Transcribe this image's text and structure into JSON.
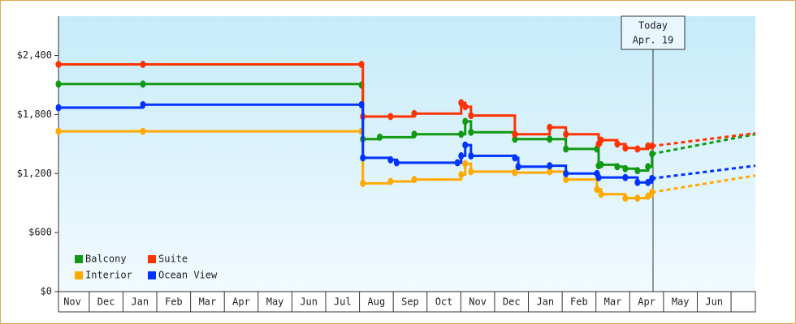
{
  "chart_data": {
    "type": "step-line",
    "xlim": [
      0.09,
      20.72
    ],
    "xticks": [
      {
        "value": 0.5,
        "label": "Nov"
      },
      {
        "value": 1.5,
        "label": "Dec"
      },
      {
        "value": 2.5,
        "label": "Jan"
      },
      {
        "value": 3.5,
        "label": "Feb"
      },
      {
        "value": 4.5,
        "label": "Mar"
      },
      {
        "value": 5.5,
        "label": "Apr"
      },
      {
        "value": 6.5,
        "label": "May"
      },
      {
        "value": 7.5,
        "label": "Jun"
      },
      {
        "value": 8.5,
        "label": "Jul"
      },
      {
        "value": 9.5,
        "label": "Aug"
      },
      {
        "value": 10.5,
        "label": "Sep"
      },
      {
        "value": 11.5,
        "label": "Oct"
      },
      {
        "value": 12.5,
        "label": "Nov"
      },
      {
        "value": 13.5,
        "label": "Dec"
      },
      {
        "value": 14.5,
        "label": "Jan"
      },
      {
        "value": 15.5,
        "label": "Feb"
      },
      {
        "value": 16.5,
        "label": "Mar"
      },
      {
        "value": 17.5,
        "label": "Apr"
      },
      {
        "value": 18.5,
        "label": "May"
      },
      {
        "value": 19.5,
        "label": "Jun"
      }
    ],
    "ylim": [
      0,
      2800
    ],
    "yticks": [
      {
        "value": 0,
        "label": "$0"
      },
      {
        "value": 600,
        "label": "$600"
      },
      {
        "value": 1200,
        "label": "$1,200"
      },
      {
        "value": 1800,
        "label": "$1,800"
      },
      {
        "value": 2400,
        "label": "$2,400"
      }
    ],
    "legend": "bottom-left",
    "today": {
      "x": 17.69,
      "label": "Today",
      "date": "Apr. 19"
    },
    "series": [
      {
        "name": "Balcony",
        "color": "#119911",
        "x": [
          0.09,
          2.59,
          9.06,
          9.1,
          9.6,
          10.62,
          12.01,
          12.13,
          12.3,
          13.6,
          14.63,
          15.11,
          16.03,
          16.08,
          16.15,
          16.63,
          16.87,
          17.23,
          17.54,
          17.66
        ],
        "values": [
          2110,
          2110,
          2100,
          1550,
          1570,
          1600,
          1600,
          1730,
          1620,
          1550,
          1550,
          1450,
          1450,
          1280,
          1290,
          1270,
          1250,
          1230,
          1270,
          1400
        ],
        "projection": {
          "x": [
            17.66,
            20.72
          ],
          "values": [
            1400,
            1600
          ]
        }
      },
      {
        "name": "Suite",
        "color": "#ff3300",
        "x": [
          0.09,
          2.59,
          9.06,
          9.1,
          9.92,
          10.62,
          12.01,
          12.13,
          12.3,
          13.6,
          14.63,
          15.11,
          16.08,
          16.15,
          16.63,
          16.87,
          17.23,
          17.54,
          17.66
        ],
        "values": [
          2310,
          2310,
          2310,
          1780,
          1780,
          1810,
          1920,
          1880,
          1790,
          1600,
          1670,
          1600,
          1500,
          1540,
          1500,
          1460,
          1450,
          1480,
          1480
        ],
        "projection": {
          "x": [
            17.66,
            20.72
          ],
          "values": [
            1480,
            1610
          ]
        }
      },
      {
        "name": "Interior",
        "color": "#ffaa00",
        "x": [
          0.09,
          2.59,
          9.06,
          9.1,
          9.92,
          10.62,
          12.01,
          12.13,
          12.3,
          13.6,
          14.63,
          15.11,
          16.03,
          16.15,
          16.87,
          17.23,
          17.54,
          17.66
        ],
        "values": [
          1630,
          1630,
          1630,
          1100,
          1120,
          1140,
          1190,
          1300,
          1220,
          1210,
          1220,
          1140,
          1040,
          990,
          950,
          950,
          970,
          1010
        ],
        "projection": {
          "x": [
            17.66,
            20.72
          ],
          "values": [
            1010,
            1180
          ]
        }
      },
      {
        "name": "Ocean View",
        "color": "#0033ff",
        "x": [
          0.09,
          2.59,
          9.06,
          9.1,
          9.92,
          10.1,
          11.9,
          12.01,
          12.13,
          12.3,
          13.6,
          13.7,
          14.63,
          15.11,
          16.03,
          16.08,
          16.87,
          17.23,
          17.54,
          17.66
        ],
        "values": [
          1870,
          1900,
          1900,
          1360,
          1340,
          1310,
          1310,
          1380,
          1490,
          1380,
          1360,
          1270,
          1280,
          1200,
          1200,
          1160,
          1160,
          1110,
          1110,
          1150
        ],
        "projection": {
          "x": [
            17.66,
            20.72
          ],
          "values": [
            1150,
            1280
          ]
        }
      }
    ]
  }
}
